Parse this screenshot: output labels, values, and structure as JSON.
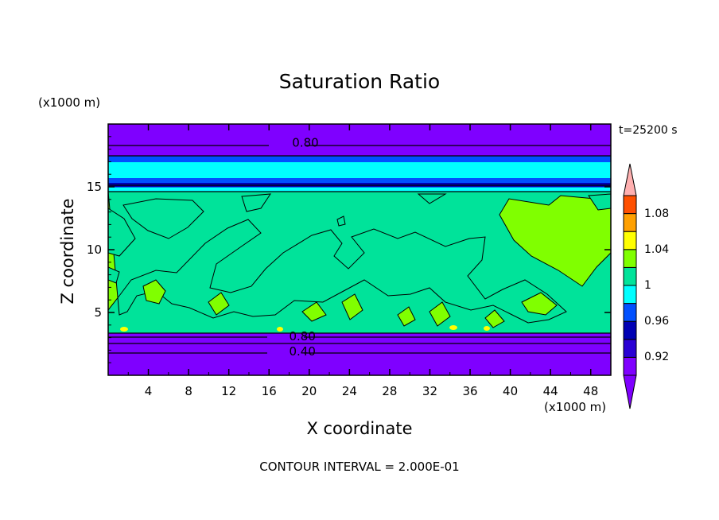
{
  "chart_data": {
    "type": "heatmap",
    "title": "Saturation Ratio",
    "xlabel": "X coordinate",
    "ylabel": "Z coordinate",
    "x_units": "(x1000 m)",
    "y_units": "(x1000 m)",
    "time_label": "t=25200 s",
    "footer": "CONTOUR INTERVAL = 2.000E-01",
    "xlim": [
      0,
      50
    ],
    "ylim": [
      0,
      20
    ],
    "x_ticks": [
      "4",
      "8",
      "12",
      "16",
      "20",
      "24",
      "28",
      "32",
      "36",
      "40",
      "44",
      "48"
    ],
    "y_ticks": [
      "5",
      "10",
      "15"
    ],
    "colorbar": {
      "tick_labels": [
        "0.92",
        "0.96",
        "1",
        "1.04",
        "1.08"
      ],
      "levels": [
        0.92,
        0.94,
        0.96,
        0.98,
        1.0,
        1.02,
        1.04,
        1.06,
        1.08
      ],
      "colors": [
        "#7f00ff",
        "#2a00d4",
        "#0000b4",
        "#0050ff",
        "#00ffff",
        "#00e39a",
        "#80ff00",
        "#ffff00",
        "#ffa000",
        "#ff5000",
        "#ff1a1a",
        "#ffb0b0"
      ]
    },
    "contour_labels": [
      {
        "text": "0.80",
        "x": 17.8,
        "y": 18.5
      },
      {
        "text": "0.80",
        "x": 17.5,
        "y": 3.1
      },
      {
        "text": "0.40",
        "x": 17.5,
        "y": 1.9
      }
    ],
    "layers": [
      {
        "z_from": 0,
        "z_to": 3.2,
        "value": "< 0.92"
      },
      {
        "z_from": 3.2,
        "z_to": 14.6,
        "value": "0.98 – 1.02"
      },
      {
        "z_from": 14.6,
        "z_to": 17.6,
        "value": "0.92 – 0.98"
      },
      {
        "z_from": 17.6,
        "z_to": 20,
        "value": "< 0.92"
      }
    ]
  }
}
